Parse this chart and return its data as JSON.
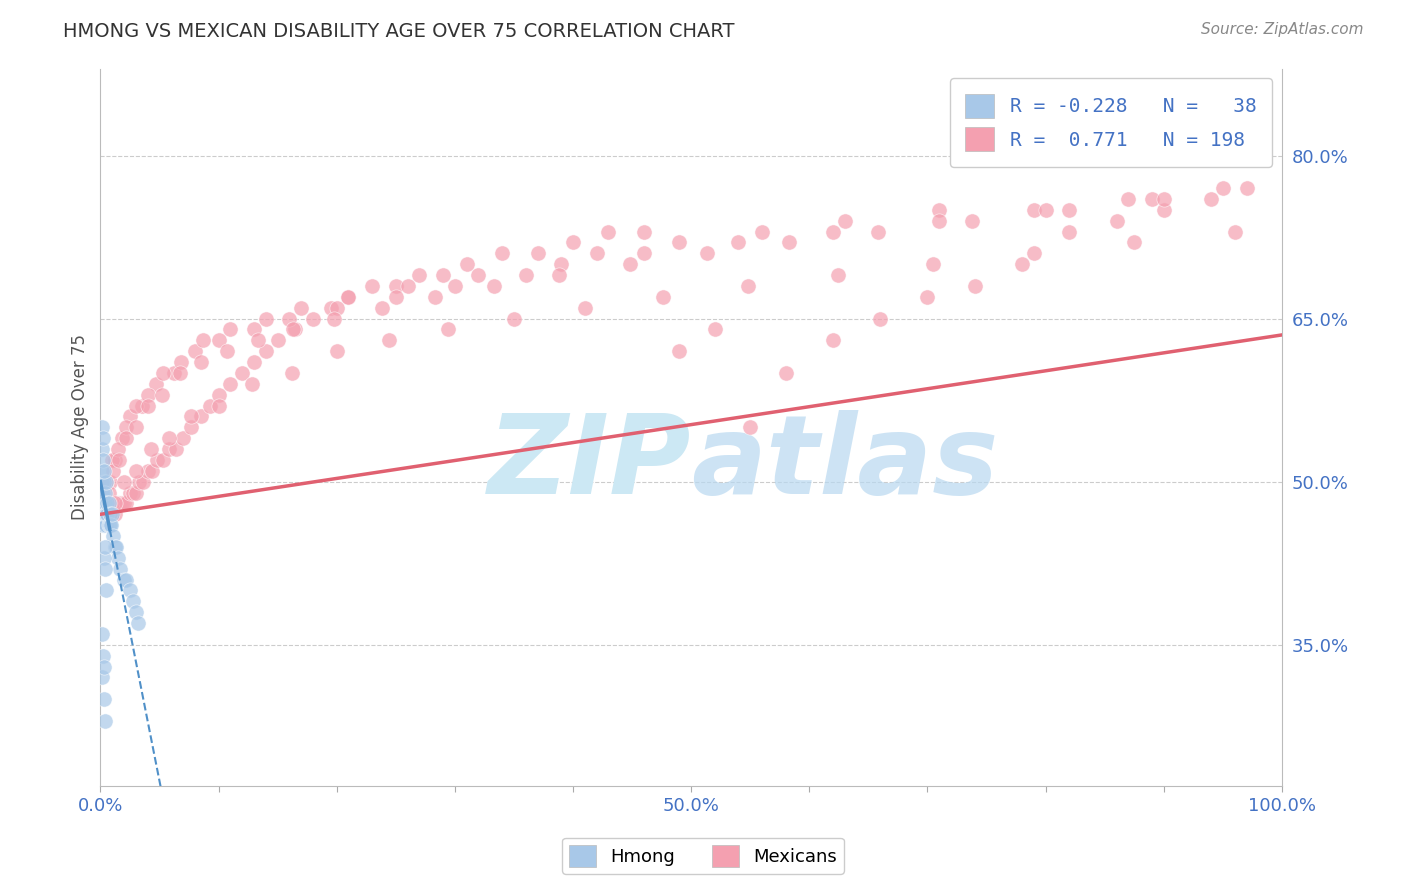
{
  "title": "HMONG VS MEXICAN DISABILITY AGE OVER 75 CORRELATION CHART",
  "source": "Source: ZipAtlas.com",
  "ylabel": "Disability Age Over 75",
  "xlim": [
    0.0,
    1.0
  ],
  "ylim": [
    0.22,
    0.88
  ],
  "x_ticks": [
    0.0,
    0.1,
    0.2,
    0.3,
    0.4,
    0.5,
    0.6,
    0.7,
    0.8,
    0.9,
    1.0
  ],
  "x_tick_labels": [
    "0.0%",
    "",
    "",
    "",
    "",
    "50.0%",
    "",
    "",
    "",
    "",
    "100.0%"
  ],
  "y_tick_right": [
    0.35,
    0.5,
    0.65,
    0.8
  ],
  "y_tick_right_labels": [
    "35.0%",
    "50.0%",
    "65.0%",
    "80.0%"
  ],
  "hmong_R": -0.228,
  "hmong_N": 38,
  "mexican_R": 0.771,
  "mexican_N": 198,
  "hmong_color": "#a8c8e8",
  "mexican_color": "#f4a0b0",
  "hmong_line_color": "#5090c8",
  "mexican_line_color": "#e06070",
  "background_color": "#ffffff",
  "grid_color": "#cccccc",
  "watermark_text": "ZIPAtlas",
  "watermark_color": "#cce8f4",
  "title_color": "#333333",
  "axis_label_color": "#555555",
  "tick_color": "#4472c4",
  "legend_r_color": "#4472c4",
  "hmong_scatter_x": [
    0.001,
    0.001,
    0.001,
    0.001,
    0.001,
    0.002,
    0.002,
    0.002,
    0.002,
    0.003,
    0.003,
    0.003,
    0.003,
    0.004,
    0.004,
    0.004,
    0.005,
    0.005,
    0.005,
    0.006,
    0.006,
    0.007,
    0.007,
    0.008,
    0.008,
    0.009,
    0.01,
    0.011,
    0.012,
    0.013,
    0.015,
    0.017,
    0.02,
    0.022,
    0.025,
    0.028,
    0.03,
    0.032
  ],
  "hmong_scatter_y": [
    0.47,
    0.48,
    0.49,
    0.5,
    0.51,
    0.46,
    0.47,
    0.48,
    0.49,
    0.46,
    0.47,
    0.48,
    0.5,
    0.47,
    0.48,
    0.49,
    0.46,
    0.47,
    0.5,
    0.47,
    0.48,
    0.46,
    0.48,
    0.46,
    0.47,
    0.46,
    0.47,
    0.45,
    0.44,
    0.44,
    0.43,
    0.42,
    0.41,
    0.41,
    0.4,
    0.39,
    0.38,
    0.37
  ],
  "hmong_extra_x": [
    0.001,
    0.001,
    0.002,
    0.002,
    0.003,
    0.003,
    0.004,
    0.004,
    0.005
  ],
  "hmong_extra_y": [
    0.53,
    0.55,
    0.52,
    0.54,
    0.51,
    0.43,
    0.44,
    0.42,
    0.4
  ],
  "hmong_low_x": [
    0.001,
    0.001,
    0.002,
    0.003,
    0.003,
    0.004
  ],
  "hmong_low_y": [
    0.36,
    0.32,
    0.34,
    0.33,
    0.3,
    0.28
  ],
  "mexican_scatter_x": [
    0.003,
    0.004,
    0.005,
    0.006,
    0.007,
    0.008,
    0.009,
    0.01,
    0.011,
    0.012,
    0.014,
    0.015,
    0.017,
    0.018,
    0.02,
    0.022,
    0.025,
    0.028,
    0.03,
    0.033,
    0.036,
    0.04,
    0.044,
    0.048,
    0.053,
    0.058,
    0.064,
    0.07,
    0.077,
    0.085,
    0.093,
    0.1,
    0.11,
    0.12,
    0.13,
    0.14,
    0.15,
    0.165,
    0.18,
    0.195,
    0.21,
    0.23,
    0.25,
    0.27,
    0.29,
    0.31,
    0.34,
    0.37,
    0.4,
    0.43,
    0.46,
    0.49,
    0.52,
    0.55,
    0.58,
    0.62,
    0.66,
    0.7,
    0.74,
    0.78,
    0.82,
    0.86,
    0.9,
    0.94,
    0.005,
    0.008,
    0.012,
    0.018,
    0.025,
    0.035,
    0.047,
    0.062,
    0.08,
    0.1,
    0.13,
    0.16,
    0.2,
    0.25,
    0.3,
    0.36,
    0.42,
    0.49,
    0.56,
    0.63,
    0.71,
    0.79,
    0.87,
    0.95,
    0.005,
    0.01,
    0.015,
    0.022,
    0.03,
    0.04,
    0.053,
    0.068,
    0.087,
    0.11,
    0.14,
    0.17,
    0.21,
    0.26,
    0.32,
    0.39,
    0.46,
    0.54,
    0.62,
    0.71,
    0.8,
    0.89,
    0.97,
    0.004,
    0.007,
    0.011,
    0.016,
    0.022,
    0.03,
    0.04,
    0.052,
    0.067,
    0.085,
    0.107,
    0.133,
    0.163,
    0.198,
    0.238,
    0.283,
    0.333,
    0.388,
    0.448,
    0.513,
    0.583,
    0.658,
    0.738,
    0.82,
    0.9,
    0.006,
    0.012,
    0.02,
    0.03,
    0.043,
    0.058,
    0.077,
    0.1,
    0.128,
    0.162,
    0.2,
    0.244,
    0.294,
    0.35,
    0.41,
    0.476,
    0.548,
    0.624,
    0.705,
    0.79,
    0.875,
    0.96
  ],
  "mexican_scatter_y": [
    0.47,
    0.47,
    0.47,
    0.47,
    0.47,
    0.47,
    0.47,
    0.47,
    0.47,
    0.47,
    0.48,
    0.48,
    0.48,
    0.48,
    0.48,
    0.48,
    0.49,
    0.49,
    0.49,
    0.5,
    0.5,
    0.51,
    0.51,
    0.52,
    0.52,
    0.53,
    0.53,
    0.54,
    0.55,
    0.56,
    0.57,
    0.58,
    0.59,
    0.6,
    0.61,
    0.62,
    0.63,
    0.64,
    0.65,
    0.66,
    0.67,
    0.68,
    0.68,
    0.69,
    0.69,
    0.7,
    0.71,
    0.71,
    0.72,
    0.73,
    0.73,
    0.62,
    0.64,
    0.55,
    0.6,
    0.63,
    0.65,
    0.67,
    0.68,
    0.7,
    0.73,
    0.74,
    0.75,
    0.76,
    0.48,
    0.5,
    0.52,
    0.54,
    0.56,
    0.57,
    0.59,
    0.6,
    0.62,
    0.63,
    0.64,
    0.65,
    0.66,
    0.67,
    0.68,
    0.69,
    0.71,
    0.72,
    0.73,
    0.74,
    0.75,
    0.75,
    0.76,
    0.77,
    0.5,
    0.52,
    0.53,
    0.55,
    0.57,
    0.58,
    0.6,
    0.61,
    0.63,
    0.64,
    0.65,
    0.66,
    0.67,
    0.68,
    0.69,
    0.7,
    0.71,
    0.72,
    0.73,
    0.74,
    0.75,
    0.76,
    0.77,
    0.48,
    0.49,
    0.51,
    0.52,
    0.54,
    0.55,
    0.57,
    0.58,
    0.6,
    0.61,
    0.62,
    0.63,
    0.64,
    0.65,
    0.66,
    0.67,
    0.68,
    0.69,
    0.7,
    0.71,
    0.72,
    0.73,
    0.74,
    0.75,
    0.76,
    0.47,
    0.48,
    0.5,
    0.51,
    0.53,
    0.54,
    0.56,
    0.57,
    0.59,
    0.6,
    0.62,
    0.63,
    0.64,
    0.65,
    0.66,
    0.67,
    0.68,
    0.69,
    0.7,
    0.71,
    0.72,
    0.73
  ]
}
